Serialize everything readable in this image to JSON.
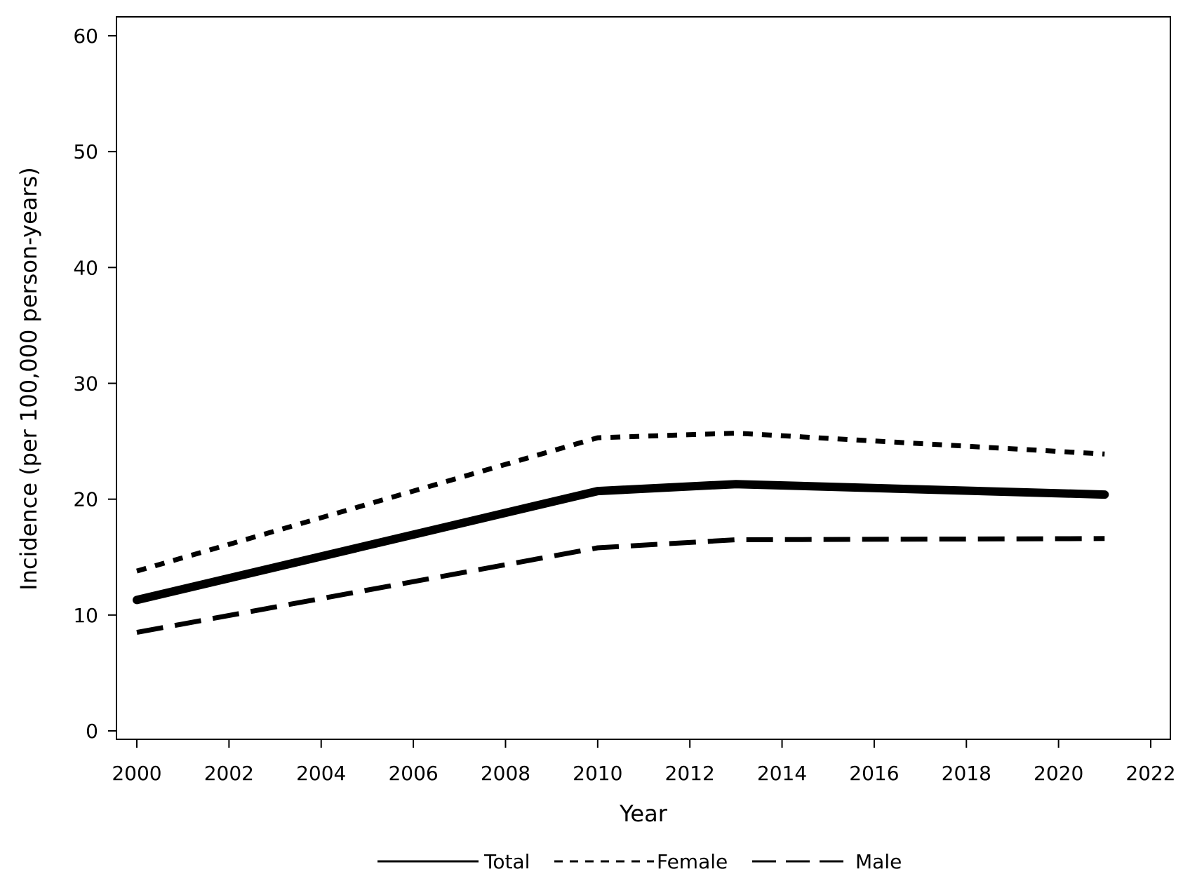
{
  "chart_data": {
    "type": "line",
    "title": "",
    "xlabel": "Year",
    "ylabel": "Incidence (per 100,000 person-years)",
    "xlim": [
      2000,
      2022
    ],
    "ylim": [
      0,
      60
    ],
    "xticks": [
      2000,
      2002,
      2004,
      2006,
      2008,
      2010,
      2012,
      2014,
      2016,
      2018,
      2020,
      2022
    ],
    "yticks": [
      0,
      10,
      20,
      30,
      40,
      50,
      60
    ],
    "grid": false,
    "legend_position": "bottom",
    "series": [
      {
        "name": "Total",
        "line_style": "solid",
        "x": [
          2000,
          2010,
          2013,
          2021
        ],
        "values": [
          11.3,
          20.7,
          21.3,
          20.4
        ]
      },
      {
        "name": "Female",
        "line_style": "dotted",
        "x": [
          2000,
          2010,
          2013,
          2021
        ],
        "values": [
          13.8,
          25.3,
          25.7,
          23.9
        ]
      },
      {
        "name": "Male",
        "line_style": "long-dash",
        "x": [
          2000,
          2010,
          2013,
          2021
        ],
        "values": [
          8.5,
          15.8,
          16.5,
          16.6
        ]
      }
    ],
    "colors": {
      "line": "#000000",
      "axis": "#000000",
      "background": "#ffffff"
    }
  }
}
